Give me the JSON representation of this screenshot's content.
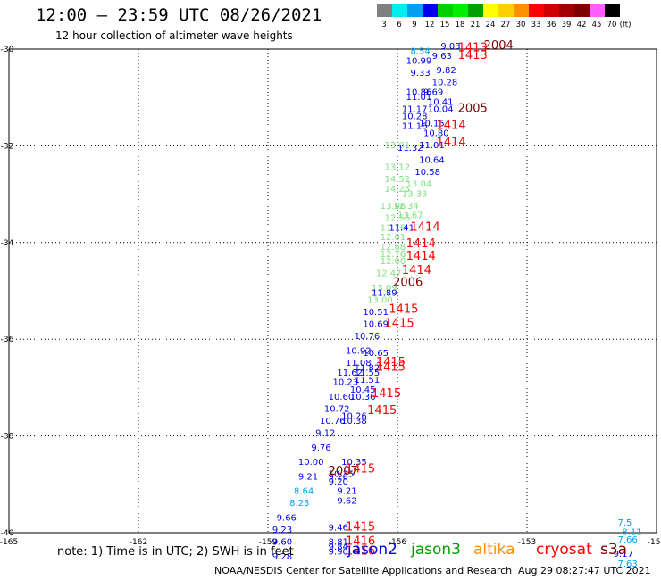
{
  "title": "12:00 – 23:59 UTC 08/26/2021",
  "subtitle": "12 hour collection of altimeter wave heights",
  "colorbar": {
    "unit": "(ft)",
    "labels": [
      "3",
      "6",
      "9",
      "12",
      "15",
      "18",
      "21",
      "24",
      "27",
      "30",
      "33",
      "36",
      "39",
      "42",
      "45",
      "70"
    ],
    "colors": [
      "#808080",
      "#00eeee",
      "#00a0ee",
      "#0000ee",
      "#00d000",
      "#00ee00",
      "#00a000",
      "#ffff00",
      "#ffd000",
      "#ff9000",
      "#ff0000",
      "#d00000",
      "#a00000",
      "#800000",
      "#ff60ff",
      "#000000"
    ]
  },
  "legend_note": "note:  1) Time is in UTC;  2) SWH is in feet",
  "satellites": [
    {
      "name": "jason2",
      "color": "#0000ee"
    },
    {
      "name": "jason3",
      "color": "#00a000"
    },
    {
      "name": "altika",
      "color": "#ff9000"
    },
    {
      "name": "cryosat",
      "color": "#ff0000"
    },
    {
      "name": "s3a",
      "color": "#800000"
    }
  ],
  "footer": "NOAA/NESDIS Center for Satellite Applications and Research",
  "footer_time": "Aug 29 08:27:47 UTC 2021",
  "chart_data": {
    "type": "map",
    "xlim": [
      -165,
      -150
    ],
    "ylim": [
      -40,
      -30
    ],
    "x_ticks": [
      -165,
      -162,
      -159,
      -156,
      -153,
      -150
    ],
    "y_ticks": [
      -30,
      -32,
      -34,
      -36,
      -38,
      -40
    ],
    "x_tick_labels": [
      "-165",
      "-162",
      "-159",
      "-156",
      "-153",
      "-150"
    ],
    "y_tick_labels": [
      "-30",
      "-32",
      "-34",
      "-36",
      "-38",
      "-40"
    ],
    "grid": true,
    "observations": [
      {
        "lon": -155.7,
        "lat": -30.1,
        "swh": "8.54",
        "color": "#00a0ee"
      },
      {
        "lon": -155.0,
        "lat": -30.0,
        "swh": "9.03",
        "color": "#0000ee"
      },
      {
        "lon": -155.8,
        "lat": -30.3,
        "swh": "10.99",
        "color": "#0000ee"
      },
      {
        "lon": -155.2,
        "lat": -30.2,
        "swh": "9.63",
        "color": "#0000ee"
      },
      {
        "lon": -155.1,
        "lat": -30.5,
        "swh": "9.82",
        "color": "#0000ee"
      },
      {
        "lon": -155.7,
        "lat": -30.55,
        "swh": "9.33",
        "color": "#0000ee"
      },
      {
        "lon": -155.2,
        "lat": -30.75,
        "swh": "10.28",
        "color": "#0000ee"
      },
      {
        "lon": -155.8,
        "lat": -30.95,
        "swh": "10.86",
        "color": "#0000ee"
      },
      {
        "lon": -155.4,
        "lat": -30.95,
        "swh": "9.69",
        "color": "#0000ee"
      },
      {
        "lon": -155.8,
        "lat": -31.05,
        "swh": "11.01",
        "color": "#0000ee"
      },
      {
        "lon": -155.3,
        "lat": -31.15,
        "swh": "10.41",
        "color": "#0000ee"
      },
      {
        "lon": -155.9,
        "lat": -31.3,
        "swh": "11.17",
        "color": "#0000ee"
      },
      {
        "lon": -155.3,
        "lat": -31.3,
        "swh": "10.04",
        "color": "#0000ee"
      },
      {
        "lon": -155.9,
        "lat": -31.45,
        "swh": "10.28",
        "color": "#0000ee"
      },
      {
        "lon": -155.5,
        "lat": -31.6,
        "swh": "10.15",
        "color": "#0000ee"
      },
      {
        "lon": -155.9,
        "lat": -31.65,
        "swh": "11.16",
        "color": "#0000ee"
      },
      {
        "lon": -155.4,
        "lat": -31.8,
        "swh": "10.80",
        "color": "#0000ee"
      },
      {
        "lon": -156.3,
        "lat": -32.05,
        "swh": "13.01",
        "color": "#80e080"
      },
      {
        "lon": -155.5,
        "lat": -32.05,
        "swh": "11.01",
        "color": "#0000ee"
      },
      {
        "lon": -156.0,
        "lat": -32.1,
        "swh": "11.32",
        "color": "#0000ee"
      },
      {
        "lon": -155.5,
        "lat": -32.35,
        "swh": "10.64",
        "color": "#0000ee"
      },
      {
        "lon": -156.3,
        "lat": -32.5,
        "swh": "13.12",
        "color": "#80e080"
      },
      {
        "lon": -155.6,
        "lat": -32.6,
        "swh": "10.58",
        "color": "#0000ee"
      },
      {
        "lon": -156.3,
        "lat": -32.75,
        "swh": "14.52",
        "color": "#80e080"
      },
      {
        "lon": -155.8,
        "lat": -32.85,
        "swh": "13.04",
        "color": "#80e080"
      },
      {
        "lon": -156.3,
        "lat": -32.95,
        "swh": "14.25",
        "color": "#80e080"
      },
      {
        "lon": -155.9,
        "lat": -33.05,
        "swh": "13.33",
        "color": "#80e080"
      },
      {
        "lon": -156.4,
        "lat": -33.3,
        "swh": "13.06",
        "color": "#80e080"
      },
      {
        "lon": -156.1,
        "lat": -33.3,
        "swh": "12.34",
        "color": "#80e080"
      },
      {
        "lon": -156.3,
        "lat": -33.55,
        "swh": "12.56",
        "color": "#80e080"
      },
      {
        "lon": -156.0,
        "lat": -33.5,
        "swh": "13.67",
        "color": "#80e080"
      },
      {
        "lon": -156.4,
        "lat": -33.75,
        "swh": "11.76",
        "color": "#80e080"
      },
      {
        "lon": -156.2,
        "lat": -33.75,
        "swh": "11.41",
        "color": "#0000ee"
      },
      {
        "lon": -156.4,
        "lat": -33.95,
        "swh": "12.01",
        "color": "#80e080"
      },
      {
        "lon": -156.4,
        "lat": -34.15,
        "swh": "12.68",
        "color": "#80e080"
      },
      {
        "lon": -156.4,
        "lat": -34.3,
        "swh": "12.76",
        "color": "#80e080"
      },
      {
        "lon": -156.4,
        "lat": -34.45,
        "swh": "12.00",
        "color": "#80e080"
      },
      {
        "lon": -156.5,
        "lat": -34.7,
        "swh": "12.47",
        "color": "#80e080"
      },
      {
        "lon": -156.6,
        "lat": -35.0,
        "swh": "13.09",
        "color": "#80e080"
      },
      {
        "lon": -156.6,
        "lat": -35.1,
        "swh": "11.89",
        "color": "#0000ee"
      },
      {
        "lon": -156.7,
        "lat": -35.25,
        "swh": "13.00",
        "color": "#80e080"
      },
      {
        "lon": -156.8,
        "lat": -35.5,
        "swh": "10.51",
        "color": "#0000ee"
      },
      {
        "lon": -156.8,
        "lat": -35.75,
        "swh": "10.69",
        "color": "#0000ee"
      },
      {
        "lon": -157.0,
        "lat": -36.0,
        "swh": "10.76",
        "color": "#0000ee"
      },
      {
        "lon": -157.2,
        "lat": -36.3,
        "swh": "10.92",
        "color": "#0000ee"
      },
      {
        "lon": -156.8,
        "lat": -36.35,
        "swh": "10.65",
        "color": "#0000ee"
      },
      {
        "lon": -157.2,
        "lat": -36.55,
        "swh": "11.08",
        "color": "#0000ee"
      },
      {
        "lon": -157.0,
        "lat": -36.65,
        "swh": "11.82",
        "color": "#0000ee"
      },
      {
        "lon": -157.4,
        "lat": -36.75,
        "swh": "11.62",
        "color": "#0000ee"
      },
      {
        "lon": -157.0,
        "lat": -36.75,
        "swh": "11.55",
        "color": "#0000ee"
      },
      {
        "lon": -157.0,
        "lat": -36.9,
        "swh": "11.51",
        "color": "#0000ee"
      },
      {
        "lon": -157.5,
        "lat": -36.95,
        "swh": "10.23",
        "color": "#0000ee"
      },
      {
        "lon": -157.1,
        "lat": -37.1,
        "swh": "10.45",
        "color": "#0000ee"
      },
      {
        "lon": -157.6,
        "lat": -37.25,
        "swh": "10.60",
        "color": "#0000ee"
      },
      {
        "lon": -157.1,
        "lat": -37.25,
        "swh": "10.36",
        "color": "#0000ee"
      },
      {
        "lon": -157.7,
        "lat": -37.5,
        "swh": "10.72",
        "color": "#0000ee"
      },
      {
        "lon": -157.3,
        "lat": -37.65,
        "swh": "10.26",
        "color": "#0000ee"
      },
      {
        "lon": -157.8,
        "lat": -37.75,
        "swh": "10.76",
        "color": "#0000ee"
      },
      {
        "lon": -157.3,
        "lat": -37.75,
        "swh": "10.38",
        "color": "#0000ee"
      },
      {
        "lon": -157.9,
        "lat": -38.0,
        "swh": "9.12",
        "color": "#0000ee"
      },
      {
        "lon": -158.0,
        "lat": -38.3,
        "swh": "9.76",
        "color": "#0000ee"
      },
      {
        "lon": -157.3,
        "lat": -38.6,
        "swh": "10.35",
        "color": "#0000ee"
      },
      {
        "lon": -158.3,
        "lat": -38.6,
        "swh": "10.00",
        "color": "#0000ee"
      },
      {
        "lon": -157.6,
        "lat": -38.85,
        "swh": "10.35",
        "color": "#0000ee"
      },
      {
        "lon": -158.3,
        "lat": -38.9,
        "swh": "9.21",
        "color": "#0000ee"
      },
      {
        "lon": -157.6,
        "lat": -38.9,
        "swh": "9.26",
        "color": "#0000ee"
      },
      {
        "lon": -157.6,
        "lat": -39.0,
        "swh": "9.20",
        "color": "#0000ee"
      },
      {
        "lon": -157.4,
        "lat": -39.2,
        "swh": "9.21",
        "color": "#0000ee"
      },
      {
        "lon": -158.4,
        "lat": -39.2,
        "swh": "8.64",
        "color": "#00a0ee"
      },
      {
        "lon": -157.4,
        "lat": -39.4,
        "swh": "9.62",
        "color": "#0000ee"
      },
      {
        "lon": -158.5,
        "lat": -39.45,
        "swh": "8.23",
        "color": "#00a0ee"
      },
      {
        "lon": -158.8,
        "lat": -39.75,
        "swh": "9.66",
        "color": "#0000ee"
      },
      {
        "lon": -157.6,
        "lat": -39.95,
        "swh": "9.46",
        "color": "#0000ee"
      },
      {
        "lon": -158.9,
        "lat": -40.0,
        "swh": "9.23",
        "color": "#0000ee"
      },
      {
        "lon": -157.6,
        "lat": -40.25,
        "swh": "8.81",
        "color": "#0000ee"
      },
      {
        "lon": -158.9,
        "lat": -40.25,
        "swh": "9.60",
        "color": "#0000ee"
      },
      {
        "lon": -157.6,
        "lat": -40.35,
        "swh": "9.84",
        "color": "#0000ee"
      },
      {
        "lon": -157.6,
        "lat": -40.45,
        "swh": "9.90",
        "color": "#0000ee"
      },
      {
        "lon": -158.9,
        "lat": -40.55,
        "swh": "9.28",
        "color": "#0000ee"
      },
      {
        "lon": -150.9,
        "lat": -39.85,
        "swh": "7.5",
        "color": "#00a0ee"
      },
      {
        "lon": -150.8,
        "lat": -40.05,
        "swh": "8.11",
        "color": "#00a0ee"
      },
      {
        "lon": -150.9,
        "lat": -40.2,
        "swh": "7.66",
        "color": "#00a0ee"
      },
      {
        "lon": -151.0,
        "lat": -40.5,
        "swh": "9.17",
        "color": "#0000ee"
      },
      {
        "lon": -150.9,
        "lat": -40.7,
        "swh": "7.63",
        "color": "#00a0ee"
      }
    ],
    "time_labels": [
      {
        "lon": -154.0,
        "lat": -30.0,
        "text": "2004",
        "color": "#800000"
      },
      {
        "lon": -154.6,
        "lat": -30.05,
        "text": "1413",
        "color": "#ff0000"
      },
      {
        "lon": -154.6,
        "lat": -30.2,
        "text": "1413",
        "color": "#ff0000"
      },
      {
        "lon": -154.6,
        "lat": -31.3,
        "text": "2005",
        "color": "#800000"
      },
      {
        "lon": -155.1,
        "lat": -31.65,
        "text": "1414",
        "color": "#ff0000"
      },
      {
        "lon": -155.1,
        "lat": -32.0,
        "text": "1414",
        "color": "#ff0000"
      },
      {
        "lon": -155.7,
        "lat": -33.75,
        "text": "1414",
        "color": "#ff0000"
      },
      {
        "lon": -155.8,
        "lat": -34.1,
        "text": "1414",
        "color": "#ff0000"
      },
      {
        "lon": -155.8,
        "lat": -34.35,
        "text": "1414",
        "color": "#ff0000"
      },
      {
        "lon": -155.9,
        "lat": -34.65,
        "text": "1414",
        "color": "#ff0000"
      },
      {
        "lon": -156.1,
        "lat": -34.9,
        "text": "2006",
        "color": "#800000"
      },
      {
        "lon": -156.2,
        "lat": -35.45,
        "text": "1415",
        "color": "#ff0000"
      },
      {
        "lon": -156.3,
        "lat": -35.75,
        "text": "1415",
        "color": "#ff0000"
      },
      {
        "lon": -156.5,
        "lat": -36.55,
        "text": "1415",
        "color": "#ff0000"
      },
      {
        "lon": -156.5,
        "lat": -36.65,
        "text": "1415",
        "color": "#ff0000"
      },
      {
        "lon": -156.6,
        "lat": -37.2,
        "text": "1415",
        "color": "#ff0000"
      },
      {
        "lon": -156.7,
        "lat": -37.55,
        "text": "1415",
        "color": "#ff0000"
      },
      {
        "lon": -157.6,
        "lat": -38.8,
        "text": "2007",
        "color": "#800000"
      },
      {
        "lon": -157.2,
        "lat": -38.75,
        "text": "1415",
        "color": "#ff0000"
      },
      {
        "lon": -157.2,
        "lat": -39.95,
        "text": "1415",
        "color": "#ff0000"
      },
      {
        "lon": -157.2,
        "lat": -40.25,
        "text": "1416",
        "color": "#ff0000"
      },
      {
        "lon": -157.2,
        "lat": -40.45,
        "text": "1416",
        "color": "#ff0000"
      }
    ]
  }
}
